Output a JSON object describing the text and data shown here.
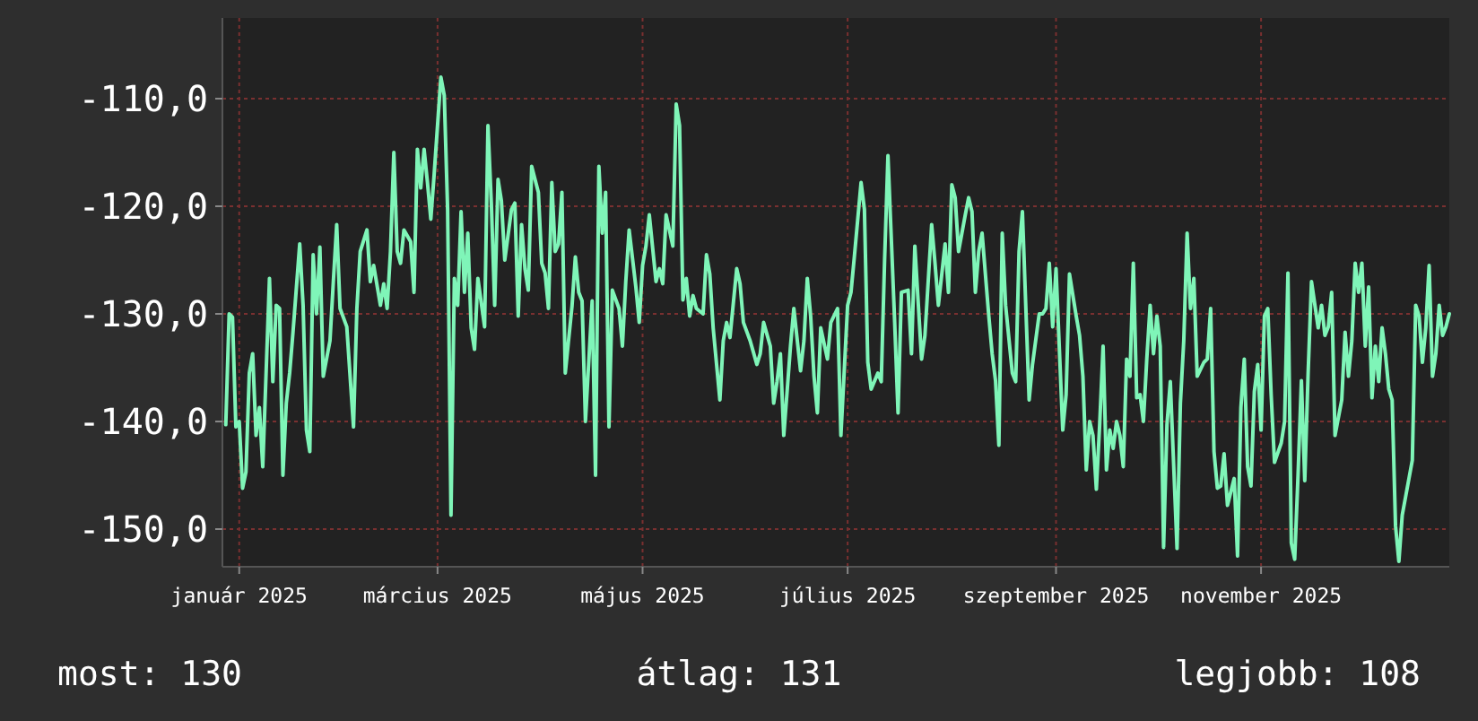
{
  "chart_data": {
    "type": "line",
    "x": [
      "2025-01-11",
      "2025-01-12",
      "2025-01-13",
      "2025-01-14",
      "2025-01-15",
      "2025-01-16",
      "2025-01-17",
      "2025-01-18",
      "2025-01-19",
      "2025-01-20",
      "2025-01-21",
      "2025-01-22",
      "2025-01-24",
      "2025-01-25",
      "2025-01-26",
      "2025-01-27",
      "2025-01-28",
      "2025-01-29",
      "2025-01-30",
      "2025-01-31",
      "2025-02-02",
      "2025-02-03",
      "2025-02-04",
      "2025-02-05",
      "2025-02-06",
      "2025-02-07",
      "2025-02-08",
      "2025-02-09",
      "2025-02-11",
      "2025-02-12",
      "2025-02-13",
      "2025-02-14",
      "2025-02-16",
      "2025-02-18",
      "2025-02-19",
      "2025-02-20",
      "2025-02-22",
      "2025-02-23",
      "2025-02-24",
      "2025-02-26",
      "2025-02-27",
      "2025-02-28",
      "2025-03-01",
      "2025-03-02",
      "2025-03-03",
      "2025-03-04",
      "2025-03-05",
      "2025-03-07",
      "2025-03-08",
      "2025-03-09",
      "2025-03-10",
      "2025-03-11",
      "2025-03-12",
      "2025-03-13",
      "2025-03-14",
      "2025-03-16",
      "2025-03-17",
      "2025-03-18",
      "2025-03-19",
      "2025-03-20",
      "2025-03-21",
      "2025-03-22",
      "2025-03-23",
      "2025-03-24",
      "2025-03-25",
      "2025-03-26",
      "2025-03-27",
      "2025-03-29",
      "2025-03-30",
      "2025-03-31",
      "2025-04-01",
      "2025-04-02",
      "2025-04-03",
      "2025-04-04",
      "2025-04-06",
      "2025-04-07",
      "2025-04-08",
      "2025-04-09",
      "2025-04-10",
      "2025-04-11",
      "2025-04-12",
      "2025-04-14",
      "2025-04-15",
      "2025-04-16",
      "2025-04-17",
      "2025-04-18",
      "2025-04-19",
      "2025-04-20",
      "2025-04-21",
      "2025-04-22",
      "2025-04-24",
      "2025-04-25",
      "2025-04-26",
      "2025-04-27",
      "2025-04-28",
      "2025-04-30",
      "2025-05-01",
      "2025-05-02",
      "2025-05-03",
      "2025-05-04",
      "2025-05-05",
      "2025-05-06",
      "2025-05-08",
      "2025-05-09",
      "2025-05-10",
      "2025-05-11",
      "2025-05-13",
      "2025-05-14",
      "2025-05-15",
      "2025-05-16",
      "2025-05-17",
      "2025-05-19",
      "2025-05-20",
      "2025-05-21",
      "2025-05-22",
      "2025-05-24",
      "2025-05-25",
      "2025-05-26",
      "2025-05-27",
      "2025-05-28",
      "2025-05-29",
      "2025-05-30",
      "2025-05-31",
      "2025-06-02",
      "2025-06-03",
      "2025-06-04",
      "2025-06-05",
      "2025-06-07",
      "2025-06-08",
      "2025-06-09",
      "2025-06-10",
      "2025-06-12",
      "2025-06-13",
      "2025-06-14",
      "2025-06-16",
      "2025-06-18",
      "2025-06-19",
      "2025-06-20",
      "2025-06-22",
      "2025-06-23",
      "2025-06-24",
      "2025-06-25",
      "2025-06-26",
      "2025-06-27",
      "2025-06-28",
      "2025-06-29",
      "2025-07-01",
      "2025-07-02",
      "2025-07-03",
      "2025-07-04",
      "2025-07-05",
      "2025-07-06",
      "2025-07-07",
      "2025-07-09",
      "2025-07-10",
      "2025-07-12",
      "2025-07-13",
      "2025-07-15",
      "2025-07-16",
      "2025-07-17",
      "2025-07-19",
      "2025-07-20",
      "2025-07-21",
      "2025-07-22",
      "2025-07-24",
      "2025-07-25",
      "2025-07-26",
      "2025-07-27",
      "2025-07-29",
      "2025-07-30",
      "2025-07-31",
      "2025-08-02",
      "2025-08-03",
      "2025-08-04",
      "2025-08-06",
      "2025-08-07",
      "2025-08-09",
      "2025-08-10",
      "2025-08-11",
      "2025-08-13",
      "2025-08-14",
      "2025-08-15",
      "2025-08-16",
      "2025-08-17",
      "2025-08-19",
      "2025-08-20",
      "2025-08-21",
      "2025-08-22",
      "2025-08-23",
      "2025-08-24",
      "2025-08-26",
      "2025-08-27",
      "2025-08-28",
      "2025-08-29",
      "2025-08-30",
      "2025-08-31",
      "2025-09-02",
      "2025-09-03",
      "2025-09-04",
      "2025-09-05",
      "2025-09-07",
      "2025-09-08",
      "2025-09-10",
      "2025-09-11",
      "2025-09-12",
      "2025-09-13",
      "2025-09-14",
      "2025-09-15",
      "2025-09-16",
      "2025-09-17",
      "2025-09-18",
      "2025-09-19",
      "2025-09-21",
      "2025-09-22",
      "2025-09-23",
      "2025-09-24",
      "2025-09-25",
      "2025-09-26",
      "2025-09-27",
      "2025-09-28",
      "2025-09-29",
      "2025-09-30",
      "2025-10-01",
      "2025-10-02",
      "2025-10-03",
      "2025-10-04",
      "2025-10-05",
      "2025-10-06",
      "2025-10-07",
      "2025-10-08",
      "2025-10-09",
      "2025-10-10",
      "2025-10-11",
      "2025-10-12",
      "2025-10-13",
      "2025-10-14",
      "2025-10-15",
      "2025-10-16",
      "2025-10-17",
      "2025-10-18",
      "2025-10-19",
      "2025-10-21",
      "2025-10-22",
      "2025-10-23",
      "2025-10-24",
      "2025-10-25",
      "2025-10-26",
      "2025-10-27",
      "2025-10-29",
      "2025-10-30",
      "2025-10-31",
      "2025-11-01",
      "2025-11-02",
      "2025-11-03",
      "2025-11-04",
      "2025-11-05",
      "2025-11-07",
      "2025-11-08",
      "2025-11-09",
      "2025-11-10",
      "2025-11-11",
      "2025-11-12",
      "2025-11-13",
      "2025-11-14",
      "2025-11-15",
      "2025-11-16",
      "2025-11-17",
      "2025-11-18",
      "2025-11-19",
      "2025-11-21",
      "2025-11-22",
      "2025-11-23",
      "2025-11-24",
      "2025-11-25",
      "2025-11-26",
      "2025-11-27",
      "2025-11-28",
      "2025-11-29",
      "2025-11-30",
      "2025-12-02",
      "2025-12-03",
      "2025-12-04",
      "2025-12-05",
      "2025-12-06",
      "2025-12-07",
      "2025-12-09",
      "2025-12-10",
      "2025-12-11",
      "2025-12-12",
      "2025-12-13",
      "2025-12-14",
      "2025-12-15",
      "2025-12-16",
      "2025-12-17",
      "2025-12-18",
      "2025-12-19",
      "2025-12-20",
      "2025-12-21",
      "2025-12-22",
      "2025-12-23",
      "2025-12-24",
      "2025-12-25",
      "2025-12-26",
      "2025-12-27",
      "2025-12-28",
      "2025-12-30",
      "2025-12-31",
      "2026-01-01",
      "2026-01-02",
      "2026-01-03",
      "2026-01-04",
      "2026-01-05",
      "2026-01-06",
      "2026-01-07",
      "2026-01-08",
      "2026-01-09",
      "2026-01-10"
    ],
    "series": [
      {
        "color": "#7ff5b8",
        "values": [
          -140.3,
          -130,
          -130.3,
          -140.5,
          -140,
          -146.2,
          -144.7,
          -135.5,
          -133.7,
          -141.3,
          -138.7,
          -144.2,
          -126.7,
          -136.3,
          -129.2,
          -129.5,
          -145,
          -138.3,
          -135.5,
          -131.7,
          -123.5,
          -129.2,
          -140.8,
          -142.8,
          -124.5,
          -130,
          -123.8,
          -135.8,
          -132.5,
          -127,
          -121.7,
          -129.5,
          -131.2,
          -140.5,
          -129.5,
          -124.2,
          -122.2,
          -127,
          -125.5,
          -129.2,
          -127.2,
          -129.5,
          -124.2,
          -115,
          -124.2,
          -125.3,
          -122.2,
          -123.3,
          -128,
          -114.7,
          -118.3,
          -114.7,
          -117.8,
          -121.2,
          -117,
          -108,
          -109.7,
          -120.3,
          -148.7,
          -126.7,
          -129.2,
          -120.5,
          -128,
          -122.5,
          -131.3,
          -133.3,
          -126.7,
          -131.2,
          -112.5,
          -119.7,
          -129.2,
          -117.5,
          -119.5,
          -125,
          -120.3,
          -119.7,
          -130.2,
          -121.7,
          -125.8,
          -127.8,
          -116.3,
          -118.7,
          -125.3,
          -126.2,
          -129.5,
          -117.8,
          -124.2,
          -123.5,
          -118.7,
          -135.5,
          -129.3,
          -124.7,
          -128,
          -128.8,
          -140,
          -128.8,
          -145,
          -116.3,
          -122.5,
          -118.7,
          -140.5,
          -127.8,
          -129.5,
          -133,
          -127,
          -122.2,
          -127.5,
          -130.8,
          -125.5,
          -123.7,
          -120.8,
          -127,
          -125.8,
          -127.2,
          -120.8,
          -123.7,
          -110.5,
          -112.5,
          -128.7,
          -126.7,
          -130.2,
          -128.3,
          -129.5,
          -130,
          -124.5,
          -126.3,
          -131.3,
          -138,
          -132.5,
          -130.8,
          -132.2,
          -125.8,
          -127.2,
          -130.8,
          -132.5,
          -134.7,
          -133.7,
          -130.8,
          -133,
          -138.3,
          -136.3,
          -133.7,
          -141.3,
          -137.2,
          -133,
          -129.5,
          -135.3,
          -132.5,
          -126.7,
          -130.2,
          -135.8,
          -139.2,
          -131.3,
          -134.2,
          -130.8,
          -129.5,
          -141.3,
          -129.2,
          -128,
          -124.7,
          -117.8,
          -120.3,
          -134.5,
          -137,
          -135.5,
          -136.3,
          -125,
          -115.3,
          -130.8,
          -139.2,
          -128,
          -127.8,
          -133.7,
          -123.7,
          -134.2,
          -132,
          -121.7,
          -125.3,
          -129.2,
          -123.5,
          -128,
          -118,
          -119.2,
          -124.2,
          -120.8,
          -119.2,
          -120.5,
          -128,
          -124.2,
          -122.5,
          -130.2,
          -133.7,
          -136.2,
          -142.2,
          -122.5,
          -129.2,
          -135.5,
          -136.3,
          -124.2,
          -120.5,
          -138,
          -134.7,
          -130,
          -130,
          -129.5,
          -125.3,
          -131.2,
          -125.8,
          -133.3,
          -140.8,
          -137.5,
          -126.3,
          -130.2,
          -132,
          -135.8,
          -144.5,
          -140,
          -141.3,
          -146.3,
          -140.2,
          -133,
          -144.5,
          -140.8,
          -142.5,
          -140,
          -141.3,
          -144.2,
          -134.2,
          -135.8,
          -125.3,
          -137.8,
          -137.5,
          -140,
          -134.2,
          -129.2,
          -133.7,
          -130.2,
          -133,
          -151.7,
          -140.3,
          -136.3,
          -151.8,
          -138.3,
          -132.5,
          -122.5,
          -129.5,
          -126.7,
          -135.8,
          -134.5,
          -134.2,
          -129.5,
          -142.8,
          -146.2,
          -146,
          -143,
          -147.8,
          -145.3,
          -152.5,
          -138.7,
          -134.2,
          -144.2,
          -146,
          -137.2,
          -134.7,
          -140.8,
          -130.2,
          -129.5,
          -137.5,
          -143.8,
          -142,
          -140,
          -126.2,
          -151.3,
          -152.8,
          -145,
          -136.2,
          -145.5,
          -135.5,
          -127,
          -131.3,
          -129.2,
          -132,
          -131.2,
          -128,
          -141.3,
          -138,
          -131.7,
          -135.8,
          -132.5,
          -125.3,
          -128,
          -125.3,
          -133,
          -127.5,
          -137.8,
          -133,
          -136.3,
          -131.3,
          -133.7,
          -137,
          -138,
          -149.7,
          -153,
          -148.7,
          -147,
          -143.6,
          -129.2,
          -130.2,
          -134.5,
          -131.3,
          -125.5,
          -135.8,
          -133.7,
          -129.2,
          -132,
          -131.2,
          -130
        ]
      }
    ],
    "xlim": [
      "2025-01-10",
      "2026-01-10"
    ],
    "xticks": [
      {
        "value": "2025-01-15",
        "label": "január 2025"
      },
      {
        "value": "2025-03-15",
        "label": "március 2025"
      },
      {
        "value": "2025-05-15",
        "label": "május 2025"
      },
      {
        "value": "2025-07-15",
        "label": "július 2025"
      },
      {
        "value": "2025-09-15",
        "label": "szeptember 2025"
      },
      {
        "value": "2025-11-15",
        "label": "november 2025"
      }
    ],
    "ylim": [
      -153.5,
      -102.5
    ],
    "yticks": [
      {
        "value": -110,
        "label": "-110,0"
      },
      {
        "value": -120,
        "label": "-120,0"
      },
      {
        "value": -130,
        "label": "-130,0"
      },
      {
        "value": -140,
        "label": "-140,0"
      },
      {
        "value": -150,
        "label": "-150,0"
      }
    ],
    "grid": true,
    "annotations": [
      "most: 130",
      "átlag: 131",
      "legjobb: 108"
    ]
  }
}
